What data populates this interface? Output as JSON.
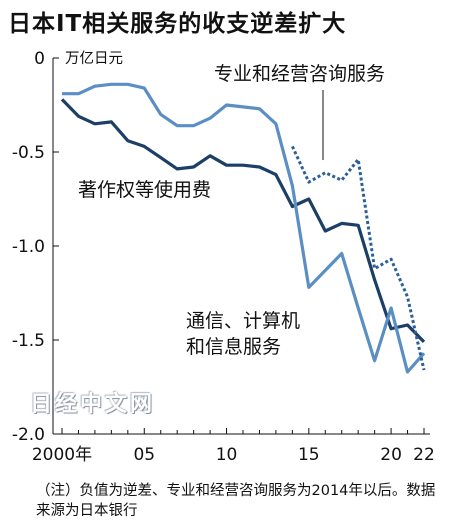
{
  "title": "日本IT相关服务的收支逆差扩大",
  "note": "（注）负值为逆差、专业和经营咨询服务为2014年以后。数据来源为日本银行",
  "watermark": "日经中文网",
  "chart_data": {
    "type": "line",
    "ylabel": "万亿日元",
    "ylim": [
      -2.0,
      0
    ],
    "yticks": [
      0,
      -0.5,
      -1.0,
      -1.5,
      -2.0
    ],
    "ytick_labels": [
      "0",
      "-0.5",
      "-1.0",
      "-1.5",
      "-2.0"
    ],
    "xlim": [
      2000,
      2022
    ],
    "xticks": [
      2000,
      2005,
      2010,
      2015,
      2020,
      2022
    ],
    "xtick_labels": [
      "2000年",
      "05",
      "10",
      "15",
      "20",
      "22"
    ],
    "series": [
      {
        "name": "著作权等使用费",
        "color": "#1b3f66",
        "style": "solid",
        "x": [
          2000,
          2001,
          2002,
          2003,
          2004,
          2005,
          2006,
          2007,
          2008,
          2009,
          2010,
          2011,
          2012,
          2013,
          2014,
          2015,
          2016,
          2017,
          2018,
          2019,
          2020,
          2021,
          2022
        ],
        "y": [
          -0.22,
          -0.31,
          -0.35,
          -0.34,
          -0.44,
          -0.47,
          -0.53,
          -0.59,
          -0.58,
          -0.52,
          -0.57,
          -0.57,
          -0.58,
          -0.62,
          -0.79,
          -0.75,
          -0.92,
          -0.88,
          -0.89,
          -1.18,
          -1.44,
          -1.42,
          -1.51
        ]
      },
      {
        "name": "通信、计算机和信息服务",
        "color": "#5b8fc4",
        "style": "solid",
        "x": [
          2000,
          2001,
          2002,
          2003,
          2004,
          2005,
          2006,
          2007,
          2008,
          2009,
          2010,
          2011,
          2012,
          2013,
          2014,
          2015,
          2016,
          2017,
          2018,
          2019,
          2020,
          2021,
          2022
        ],
        "y": [
          -0.19,
          -0.19,
          -0.15,
          -0.14,
          -0.14,
          -0.16,
          -0.3,
          -0.36,
          -0.36,
          -0.32,
          -0.25,
          -0.26,
          -0.27,
          -0.35,
          -0.68,
          -1.22,
          -1.13,
          -1.04,
          -1.33,
          -1.61,
          -1.33,
          -1.67,
          -1.57
        ]
      },
      {
        "name": "专业和经营咨询服务",
        "color": "#2c5f9a",
        "style": "dotted",
        "x": [
          2014,
          2015,
          2016,
          2017,
          2018,
          2019,
          2020,
          2021,
          2022
        ],
        "y": [
          -0.47,
          -0.66,
          -0.61,
          -0.65,
          -0.54,
          -1.12,
          -1.07,
          -1.27,
          -1.66
        ]
      }
    ],
    "annotations": [
      {
        "text": "万亿日元"
      },
      {
        "text": "专业和经营咨询服务"
      },
      {
        "text": "著作权等使用费"
      },
      {
        "text": "通信、计算机\n和信息服务"
      }
    ]
  }
}
